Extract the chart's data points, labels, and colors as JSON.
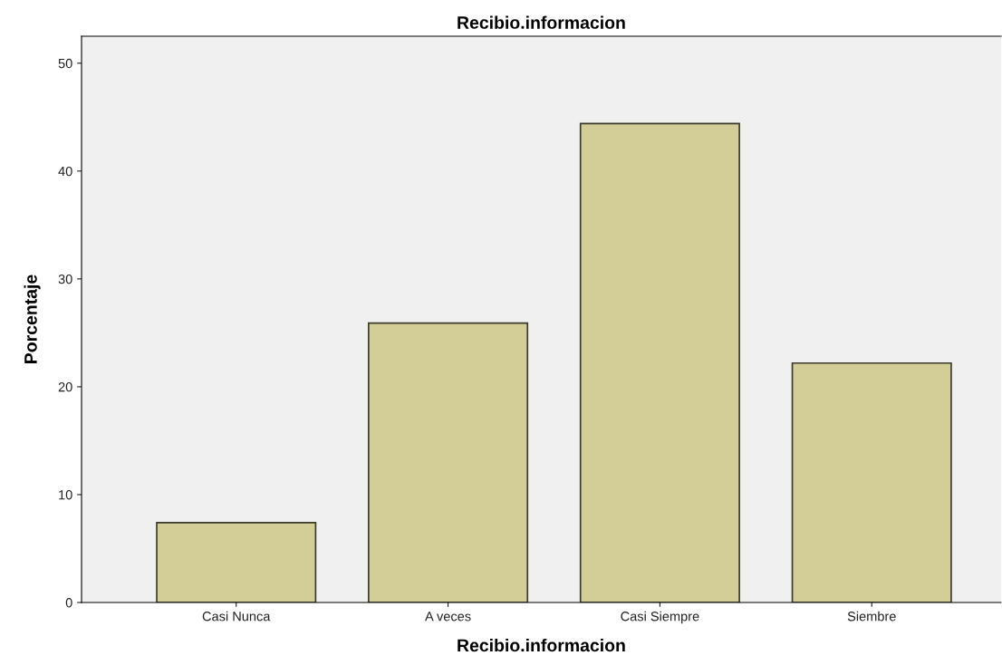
{
  "chart_data": {
    "type": "bar",
    "title": "Recibio.informacion",
    "xlabel": "Recibio.informacion",
    "ylabel": "Porcentaje",
    "categories": [
      "Casi Nunca",
      "A veces",
      "Casi Siempre",
      "Siembre"
    ],
    "values": [
      7.4,
      25.9,
      44.4,
      22.2
    ],
    "color": "#d3cd97",
    "ylim": [
      0,
      52.5
    ],
    "yticks": [
      0,
      10,
      20,
      30,
      40,
      50
    ],
    "grid": false
  }
}
